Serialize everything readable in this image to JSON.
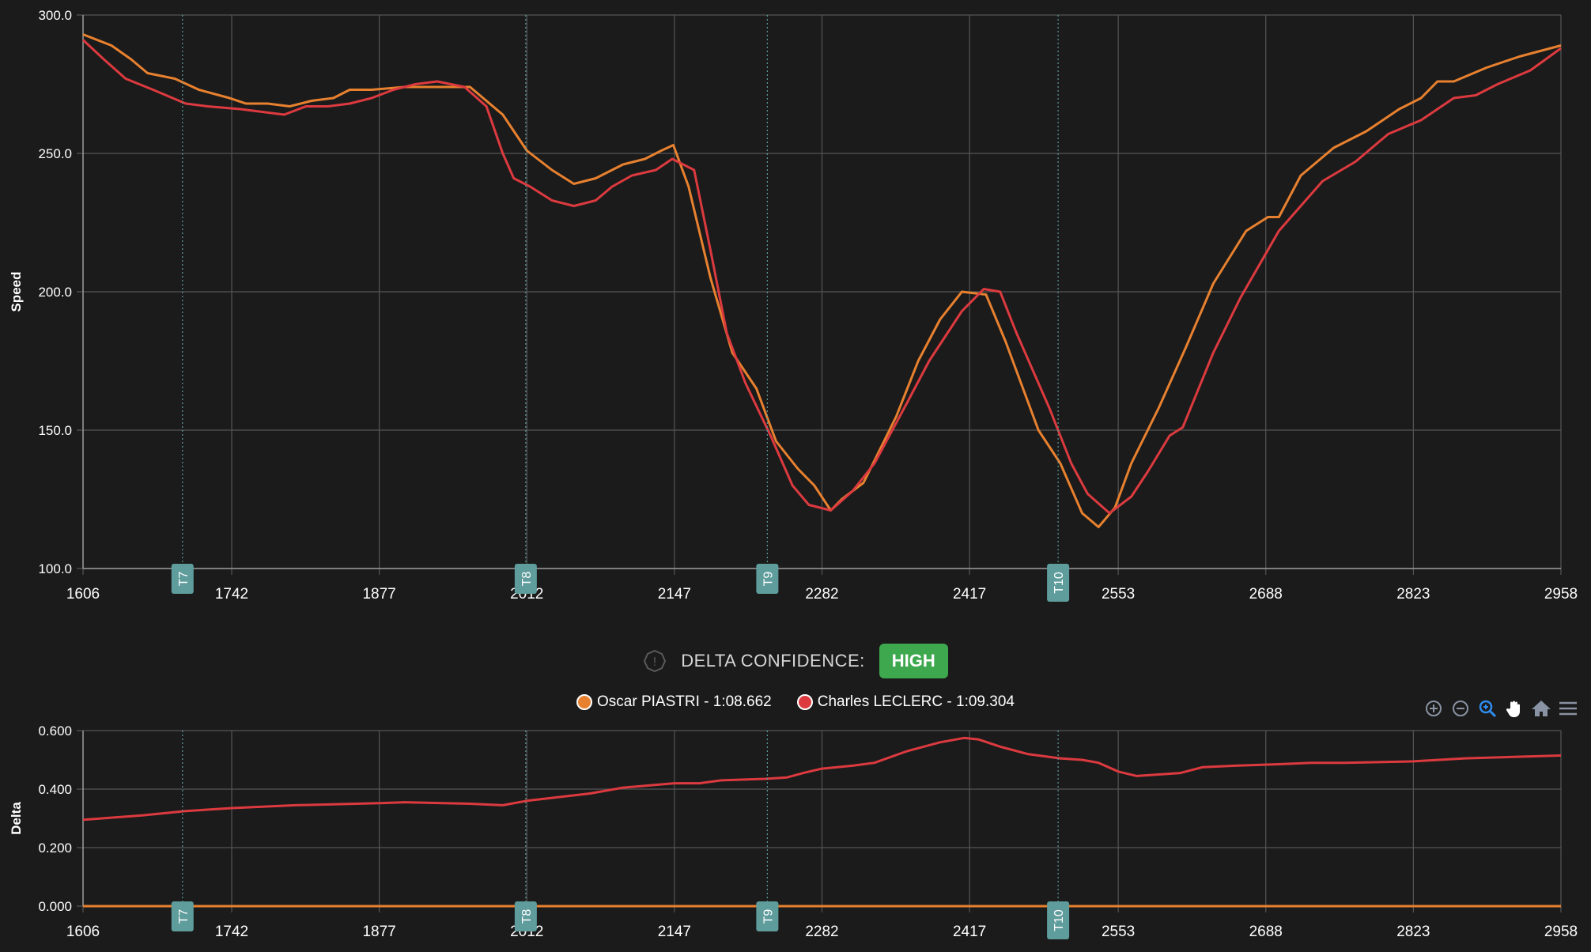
{
  "confidence": {
    "label": "DELTA CONFIDENCE:",
    "value": "HIGH",
    "badge_color": "#3ea84e"
  },
  "legend": [
    {
      "name": "Oscar PIASTRI - 1:08.662",
      "color": "#e8812f"
    },
    {
      "name": "Charles LECLERC - 1:09.304",
      "color": "#dc3a3f"
    }
  ],
  "toolbar": [
    "zoom-in-icon",
    "zoom-out-icon",
    "zoom-selection-icon",
    "pan-hand-icon",
    "home-icon",
    "menu-icon"
  ],
  "colors": {
    "piastri": "#e8812f",
    "leclerc": "#dc3a3f",
    "marker": "#5f9c9c",
    "grid": "#555555"
  },
  "chart_data": [
    {
      "type": "line",
      "ylabel": "Speed",
      "xlim": [
        1606,
        2958
      ],
      "ylim": [
        100,
        300
      ],
      "x_ticks": [
        "1606",
        "1742",
        "1877",
        "2012",
        "2147",
        "2282",
        "2417",
        "2553",
        "2688",
        "2823",
        "2958"
      ],
      "y_ticks": [
        "100.0",
        "150.0",
        "200.0",
        "250.0",
        "300.0"
      ],
      "grid": true,
      "markers": [
        {
          "label": "T7",
          "x": 1697
        },
        {
          "label": "T8",
          "x": 2011
        },
        {
          "label": "T9",
          "x": 2232
        },
        {
          "label": "T10",
          "x": 2498
        }
      ],
      "series": [
        {
          "name": "Oscar PIASTRI - 1:08.662",
          "points": [
            [
              1606,
              293
            ],
            [
              1632,
              289
            ],
            [
              1650,
              284
            ],
            [
              1665,
              279
            ],
            [
              1690,
              277
            ],
            [
              1712,
              273
            ],
            [
              1740,
              270
            ],
            [
              1755,
              268
            ],
            [
              1775,
              268
            ],
            [
              1795,
              267
            ],
            [
              1815,
              269
            ],
            [
              1835,
              270
            ],
            [
              1850,
              273
            ],
            [
              1870,
              273
            ],
            [
              1900,
              274
            ],
            [
              1960,
              274
            ],
            [
              1990,
              264
            ],
            [
              2012,
              251
            ],
            [
              2035,
              244
            ],
            [
              2055,
              239
            ],
            [
              2075,
              241
            ],
            [
              2100,
              246
            ],
            [
              2120,
              248
            ],
            [
              2135,
              251
            ],
            [
              2146,
              253
            ],
            [
              2160,
              238
            ],
            [
              2180,
              205
            ],
            [
              2200,
              178
            ],
            [
              2222,
              165
            ],
            [
              2240,
              146
            ],
            [
              2260,
              136
            ],
            [
              2275,
              130
            ],
            [
              2290,
              121
            ],
            [
              2300,
              125
            ],
            [
              2320,
              131
            ],
            [
              2350,
              155
            ],
            [
              2370,
              175
            ],
            [
              2390,
              190
            ],
            [
              2410,
              200
            ],
            [
              2432,
              199
            ],
            [
              2450,
              182
            ],
            [
              2480,
              150
            ],
            [
              2500,
              138
            ],
            [
              2520,
              120
            ],
            [
              2535,
              115
            ],
            [
              2550,
              122
            ],
            [
              2565,
              138
            ],
            [
              2590,
              158
            ],
            [
              2615,
              180
            ],
            [
              2640,
              203
            ],
            [
              2670,
              222
            ],
            [
              2690,
              227
            ],
            [
              2700,
              227
            ],
            [
              2720,
              242
            ],
            [
              2750,
              252
            ],
            [
              2780,
              258
            ],
            [
              2810,
              266
            ],
            [
              2830,
              270
            ],
            [
              2845,
              276
            ],
            [
              2860,
              276
            ],
            [
              2890,
              281
            ],
            [
              2920,
              285
            ],
            [
              2958,
              289
            ]
          ]
        },
        {
          "name": "Charles LECLERC - 1:09.304",
          "points": [
            [
              1606,
              291
            ],
            [
              1625,
              284
            ],
            [
              1645,
              277
            ],
            [
              1670,
              273
            ],
            [
              1700,
              268
            ],
            [
              1720,
              267
            ],
            [
              1750,
              266
            ],
            [
              1790,
              264
            ],
            [
              1810,
              267
            ],
            [
              1830,
              267
            ],
            [
              1850,
              268
            ],
            [
              1870,
              270
            ],
            [
              1890,
              273
            ],
            [
              1910,
              275
            ],
            [
              1930,
              276
            ],
            [
              1955,
              274
            ],
            [
              1975,
              267
            ],
            [
              1990,
              250
            ],
            [
              2000,
              241
            ],
            [
              2015,
              238
            ],
            [
              2035,
              233
            ],
            [
              2055,
              231
            ],
            [
              2075,
              233
            ],
            [
              2090,
              238
            ],
            [
              2108,
              242
            ],
            [
              2130,
              244
            ],
            [
              2145,
              248
            ],
            [
              2165,
              244
            ],
            [
              2180,
              215
            ],
            [
              2195,
              185
            ],
            [
              2212,
              167
            ],
            [
              2235,
              148
            ],
            [
              2255,
              130
            ],
            [
              2270,
              123
            ],
            [
              2290,
              121
            ],
            [
              2310,
              128
            ],
            [
              2330,
              138
            ],
            [
              2360,
              160
            ],
            [
              2380,
              175
            ],
            [
              2410,
              193
            ],
            [
              2430,
              201
            ],
            [
              2445,
              200
            ],
            [
              2460,
              185
            ],
            [
              2490,
              158
            ],
            [
              2510,
              138
            ],
            [
              2525,
              127
            ],
            [
              2545,
              120
            ],
            [
              2565,
              126
            ],
            [
              2580,
              135
            ],
            [
              2600,
              148
            ],
            [
              2612,
              151
            ],
            [
              2640,
              178
            ],
            [
              2665,
              198
            ],
            [
              2700,
              222
            ],
            [
              2740,
              240
            ],
            [
              2770,
              247
            ],
            [
              2800,
              257
            ],
            [
              2830,
              262
            ],
            [
              2860,
              270
            ],
            [
              2880,
              271
            ],
            [
              2900,
              275
            ],
            [
              2930,
              280
            ],
            [
              2958,
              288
            ]
          ]
        }
      ]
    },
    {
      "type": "line",
      "ylabel": "Delta",
      "xlim": [
        1606,
        2958
      ],
      "ylim": [
        0,
        0.6
      ],
      "x_ticks": [
        "1606",
        "1742",
        "1877",
        "2012",
        "2147",
        "2282",
        "2417",
        "2553",
        "2688",
        "2823",
        "2958"
      ],
      "y_ticks": [
        "0.000",
        "0.200",
        "0.400",
        "0.600"
      ],
      "grid": true,
      "markers": [
        {
          "label": "T7",
          "x": 1697
        },
        {
          "label": "T8",
          "x": 2011
        },
        {
          "label": "T9",
          "x": 2232
        },
        {
          "label": "T10",
          "x": 2498
        }
      ],
      "series": [
        {
          "name": "Oscar PIASTRI - 1:08.662",
          "points": [
            [
              1606,
              0
            ],
            [
              2958,
              0
            ]
          ]
        },
        {
          "name": "Charles LECLERC - 1:09.304",
          "points": [
            [
              1606,
              0.295
            ],
            [
              1660,
              0.31
            ],
            [
              1700,
              0.325
            ],
            [
              1742,
              0.335
            ],
            [
              1800,
              0.345
            ],
            [
              1877,
              0.352
            ],
            [
              1900,
              0.355
            ],
            [
              1960,
              0.35
            ],
            [
              1990,
              0.345
            ],
            [
              2012,
              0.36
            ],
            [
              2070,
              0.385
            ],
            [
              2100,
              0.405
            ],
            [
              2147,
              0.42
            ],
            [
              2170,
              0.42
            ],
            [
              2190,
              0.43
            ],
            [
              2230,
              0.435
            ],
            [
              2250,
              0.44
            ],
            [
              2265,
              0.455
            ],
            [
              2282,
              0.47
            ],
            [
              2310,
              0.48
            ],
            [
              2330,
              0.49
            ],
            [
              2360,
              0.53
            ],
            [
              2390,
              0.56
            ],
            [
              2412,
              0.575
            ],
            [
              2425,
              0.57
            ],
            [
              2445,
              0.545
            ],
            [
              2470,
              0.52
            ],
            [
              2500,
              0.505
            ],
            [
              2520,
              0.5
            ],
            [
              2535,
              0.49
            ],
            [
              2553,
              0.46
            ],
            [
              2570,
              0.445
            ],
            [
              2590,
              0.45
            ],
            [
              2610,
              0.455
            ],
            [
              2630,
              0.475
            ],
            [
              2660,
              0.48
            ],
            [
              2700,
              0.485
            ],
            [
              2730,
              0.49
            ],
            [
              2760,
              0.49
            ],
            [
              2823,
              0.495
            ],
            [
              2870,
              0.505
            ],
            [
              2958,
              0.515
            ]
          ]
        }
      ]
    }
  ]
}
